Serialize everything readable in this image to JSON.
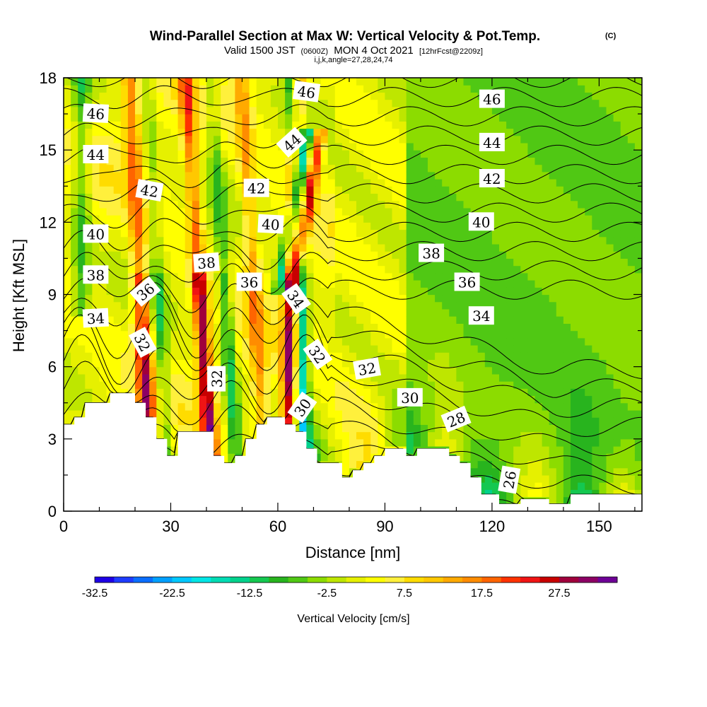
{
  "chart_data": {
    "type": "heatmap",
    "title": "Wind-Parallel Section at Max W: Vertical Velocity & Pot.Temp.",
    "title_mark": "(C)",
    "subtitle_parts": {
      "a": "Valid 1500 JST",
      "b": "(0600Z)",
      "c": "MON 4 Oct 2021",
      "d": "[12hrFcst@2209z]"
    },
    "subtitle2": "i,j,k,angle=27,28,24,74",
    "xlabel": "Distance [nm]",
    "ylabel": "Height [Kft MSL]",
    "xlim": [
      0,
      162
    ],
    "ylim": [
      0,
      18
    ],
    "x_ticks": [
      0,
      30,
      60,
      90,
      120,
      150
    ],
    "y_ticks": [
      0,
      3,
      6,
      9,
      12,
      15,
      18
    ],
    "colorbar": {
      "label": "Vertical Velocity [cm/s]",
      "min": -32.5,
      "max": 32.5,
      "step": 2.5,
      "tick_values": [
        -32.5,
        -22.5,
        -12.5,
        -2.5,
        7.5,
        17.5,
        27.5
      ],
      "tick_labels": [
        "-32.5",
        "-22.5",
        "-12.5",
        "-2.5",
        "7.5",
        "17.5",
        "27.5"
      ],
      "colors": [
        "#1e00e6",
        "#1e3cff",
        "#0a6eff",
        "#00a0ff",
        "#00c8ff",
        "#00e6e6",
        "#00dcb4",
        "#00d28c",
        "#14c850",
        "#28b41e",
        "#50c814",
        "#8cdc00",
        "#bee600",
        "#e6f000",
        "#ffff00",
        "#fff03c",
        "#ffdc00",
        "#ffc800",
        "#ffaa00",
        "#ff8c00",
        "#ff6400",
        "#ff3200",
        "#f01414",
        "#c80000",
        "#a0003c",
        "#8c0064",
        "#6e0096"
      ]
    },
    "contour_labels": [
      {
        "text": "46",
        "x": 9,
        "y": 16.5,
        "angle": 3
      },
      {
        "text": "44",
        "x": 9,
        "y": 14.8,
        "angle": 0
      },
      {
        "text": "42",
        "x": 24,
        "y": 13.3,
        "angle": 10
      },
      {
        "text": "40",
        "x": 9,
        "y": 11.5,
        "angle": 0
      },
      {
        "text": "38",
        "x": 9,
        "y": 9.8,
        "angle": 0
      },
      {
        "text": "36",
        "x": 23,
        "y": 9.1,
        "angle": -40
      },
      {
        "text": "34",
        "x": 9,
        "y": 8,
        "angle": -3
      },
      {
        "text": "32",
        "x": 22,
        "y": 7,
        "angle": 62
      },
      {
        "text": "38",
        "x": 40,
        "y": 10.3,
        "angle": -4
      },
      {
        "text": "36",
        "x": 52,
        "y": 9.5,
        "angle": 0
      },
      {
        "text": "42",
        "x": 54,
        "y": 13.4,
        "angle": 0
      },
      {
        "text": "40",
        "x": 58,
        "y": 11.9,
        "angle": 3
      },
      {
        "text": "44",
        "x": 64,
        "y": 15.3,
        "angle": -42
      },
      {
        "text": "46",
        "x": 68,
        "y": 17.4,
        "angle": 8
      },
      {
        "text": "34",
        "x": 65,
        "y": 8.8,
        "angle": 55
      },
      {
        "text": "32",
        "x": 71,
        "y": 6.5,
        "angle": 55
      },
      {
        "text": "30",
        "x": 67,
        "y": 4.3,
        "angle": -55
      },
      {
        "text": "32",
        "x": 43,
        "y": 5.5,
        "angle": -90
      },
      {
        "text": "32",
        "x": 85,
        "y": 5.9,
        "angle": -10
      },
      {
        "text": "30",
        "x": 97,
        "y": 4.7,
        "angle": 0
      },
      {
        "text": "28",
        "x": 110,
        "y": 3.8,
        "angle": -22
      },
      {
        "text": "26",
        "x": 125,
        "y": 1.3,
        "angle": -80
      },
      {
        "text": "38",
        "x": 103,
        "y": 10.7,
        "angle": 0
      },
      {
        "text": "36",
        "x": 113,
        "y": 9.5,
        "angle": 0
      },
      {
        "text": "34",
        "x": 117,
        "y": 8.1,
        "angle": 0
      },
      {
        "text": "40",
        "x": 117,
        "y": 12,
        "angle": 0
      },
      {
        "text": "42",
        "x": 120,
        "y": 13.8,
        "angle": 0
      },
      {
        "text": "44",
        "x": 120,
        "y": 15.3,
        "angle": 0
      },
      {
        "text": "46",
        "x": 120,
        "y": 17.1,
        "angle": 0
      }
    ]
  }
}
